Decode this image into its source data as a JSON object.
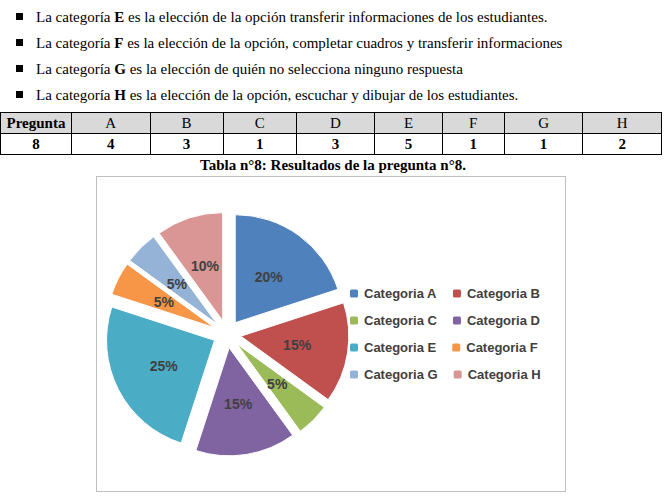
{
  "bullets": [
    {
      "before": "La categoría ",
      "bold": "E",
      "after": " es la elección de la opción transferir informaciones de los estudiantes."
    },
    {
      "before": "La categoría ",
      "bold": "F",
      "after": " es la elección de la opción, completar cuadros y transferir informaciones"
    },
    {
      "before": "La categoría ",
      "bold": "G",
      "after": " es la elección de quién no selecciona ninguno respuesta"
    },
    {
      "before": "La categoría ",
      "bold": "H",
      "after": " es la elección de la opción, escuchar y dibujar de los estudiantes."
    }
  ],
  "table": {
    "header": [
      "Pregunta",
      "A",
      "B",
      "C",
      "D",
      "E",
      "F",
      "G",
      "H"
    ],
    "rows": [
      [
        "8",
        "4",
        "3",
        "1",
        "3",
        "5",
        "1",
        "1",
        "2"
      ]
    ]
  },
  "caption": "Tabla n°8: Resultados de la pregunta n°8.",
  "chart_data": {
    "type": "pie",
    "categories": [
      "Categoria A",
      "Categoria B",
      "Categoria C",
      "Categoria D",
      "Categoria E",
      "Categoria F",
      "Categoria G",
      "Categoria H"
    ],
    "values": [
      20,
      15,
      5,
      15,
      25,
      5,
      5,
      10
    ],
    "value_labels": [
      "20%",
      "15%",
      "5%",
      "15%",
      "25%",
      "5%",
      "5%",
      "10%"
    ],
    "colors": [
      "#4f81bd",
      "#c0504d",
      "#9bbb59",
      "#8064a2",
      "#4bacc6",
      "#f79646",
      "#95b3d7",
      "#d99694"
    ],
    "legend": "right",
    "data_labels": true
  }
}
